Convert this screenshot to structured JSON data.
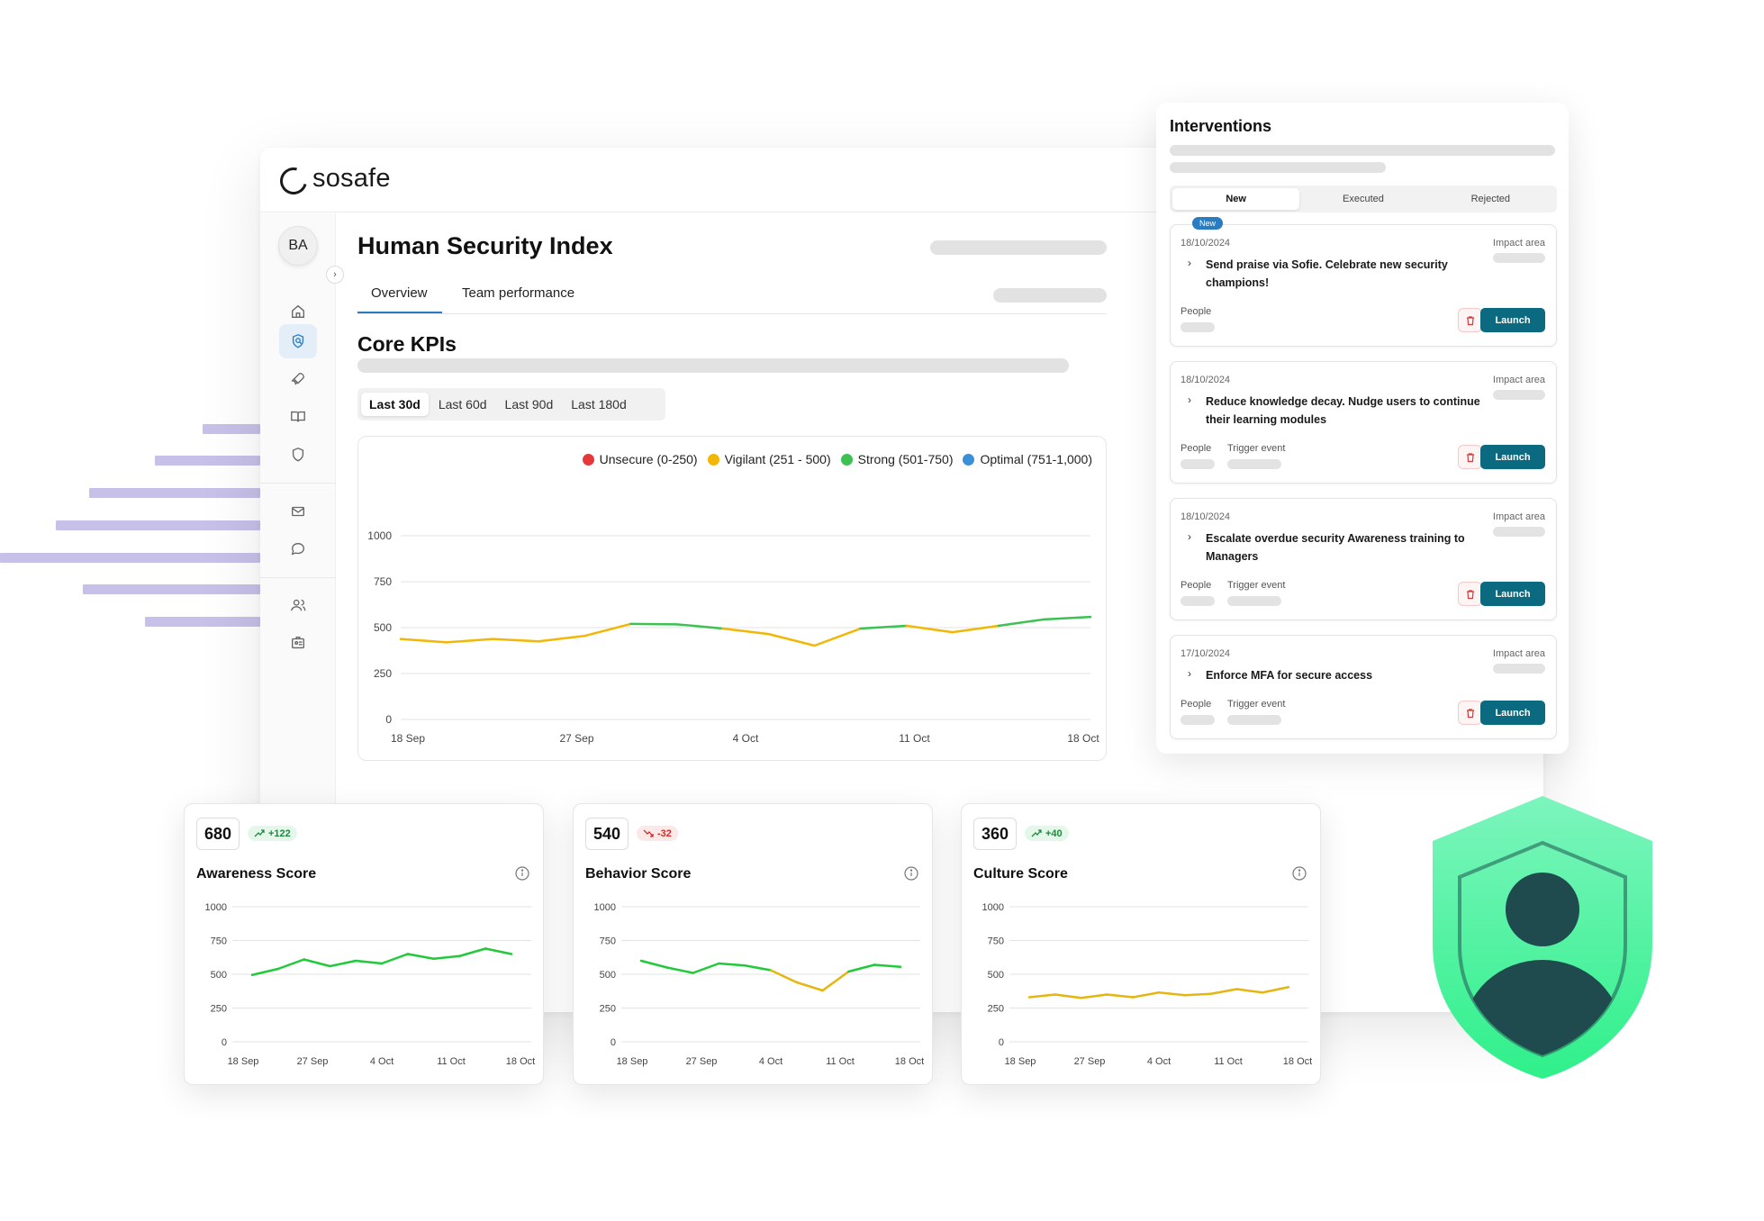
{
  "brand": {
    "name": "sosafe"
  },
  "user": {
    "initials": "BA"
  },
  "sidebar": {
    "icons": [
      "home-icon",
      "shield-search-icon",
      "rocket-icon",
      "book-icon",
      "shield-icon",
      "mail-icon",
      "chat-icon",
      "users-icon",
      "id-badge-icon"
    ],
    "active": "shield-search-icon"
  },
  "page": {
    "title": "Human Security Index",
    "tabs": [
      "Overview",
      "Team performance"
    ],
    "active_tab": "Overview",
    "section_title": "Core KPIs"
  },
  "range": {
    "options": [
      "Last 30d",
      "Last 60d",
      "Last 90d",
      "Last 180d"
    ],
    "selected": "Last 30d"
  },
  "main_chart": {
    "legend": [
      {
        "label": "Unsecure (0-250)",
        "color": "#e5383b"
      },
      {
        "label": "Vigilant (251 - 500)",
        "color": "#f2b705"
      },
      {
        "label": "Strong (501-750)",
        "color": "#3cc152"
      },
      {
        "label": "Optimal (751-1,000)",
        "color": "#3a8fd9"
      }
    ]
  },
  "chart_data": [
    {
      "type": "line",
      "title": "",
      "xlabel": "",
      "ylabel": "",
      "ylim": [
        0,
        1000
      ],
      "yticks": [
        "0",
        "250",
        "500",
        "750",
        "1000"
      ],
      "xticks": [
        "18 Sep",
        "27 Sep",
        "4 Oct",
        "11 Oct",
        "18 Oct"
      ],
      "x": [
        "18 Sep",
        "20 Sep",
        "22 Sep",
        "24 Sep",
        "26 Sep",
        "28 Sep",
        "30 Sep",
        "2 Oct",
        "4 Oct",
        "6 Oct",
        "8 Oct",
        "10 Oct",
        "12 Oct",
        "14 Oct",
        "16 Oct",
        "18 Oct"
      ],
      "series": [
        {
          "values": [
            438,
            420,
            438,
            425,
            455,
            520,
            518,
            495,
            465,
            402,
            495,
            510,
            475,
            510,
            545,
            558
          ]
        }
      ],
      "grid": true
    },
    {
      "type": "line",
      "title": "Awareness Score",
      "ylim": [
        0,
        1000
      ],
      "yticks": [
        "0",
        "250",
        "500",
        "750",
        "1000"
      ],
      "xticks": [
        "18 Sep",
        "27 Sep",
        "4 Oct",
        "11 Oct",
        "18 Oct"
      ],
      "series": [
        {
          "values": [
            495,
            540,
            610,
            560,
            600,
            580,
            650,
            615,
            635,
            690,
            650
          ]
        }
      ],
      "color": "#22c93a"
    },
    {
      "type": "line",
      "title": "Behavior Score",
      "ylim": [
        0,
        1000
      ],
      "yticks": [
        "0",
        "250",
        "500",
        "750",
        "1000"
      ],
      "xticks": [
        "18 Sep",
        "27 Sep",
        "4 Oct",
        "11 Oct",
        "18 Oct"
      ],
      "series": [
        {
          "values": [
            600,
            550,
            510,
            580,
            565,
            530,
            440,
            380,
            520,
            570,
            555
          ]
        }
      ],
      "color": "#22c93a",
      "dip_color": "#e5b512"
    },
    {
      "type": "line",
      "title": "Culture Score",
      "ylim": [
        0,
        1000
      ],
      "yticks": [
        "0",
        "250",
        "500",
        "750",
        "1000"
      ],
      "xticks": [
        "18 Sep",
        "27 Sep",
        "4 Oct",
        "11 Oct",
        "18 Oct"
      ],
      "series": [
        {
          "values": [
            330,
            350,
            325,
            350,
            330,
            365,
            345,
            355,
            390,
            365,
            405
          ]
        }
      ],
      "color": "#e5b512"
    }
  ],
  "score_cards": [
    {
      "value": "680",
      "delta": "+122",
      "trend": "up",
      "title": "Awareness Score"
    },
    {
      "value": "540",
      "delta": "-32",
      "trend": "down",
      "title": "Behavior Score"
    },
    {
      "value": "360",
      "delta": "+40",
      "trend": "up",
      "title": "Culture Score"
    }
  ],
  "interventions": {
    "title": "Interventions",
    "tabs": [
      "New",
      "Executed",
      "Rejected"
    ],
    "active_tab": "New",
    "impact_label": "Impact area",
    "people_label": "People",
    "trigger_label": "Trigger event",
    "launch_label": "Launch",
    "new_badge": "New",
    "items": [
      {
        "date": "18/10/2024",
        "title": "Send praise via Sofie. Celebrate new security champions!",
        "trigger": false
      },
      {
        "date": "18/10/2024",
        "title": "Reduce knowledge decay. Nudge users to continue their learning modules",
        "trigger": true
      },
      {
        "date": "18/10/2024",
        "title": "Escalate overdue security Awareness training to Managers",
        "trigger": true
      },
      {
        "date": "17/10/2024",
        "title": "Enforce MFA for secure access",
        "trigger": true
      }
    ]
  },
  "colors": {
    "accent": "#2a7cc2",
    "launch": "#0b6a7f",
    "shield": "#3ef59a",
    "shield_icon": "#1f4a4e"
  }
}
